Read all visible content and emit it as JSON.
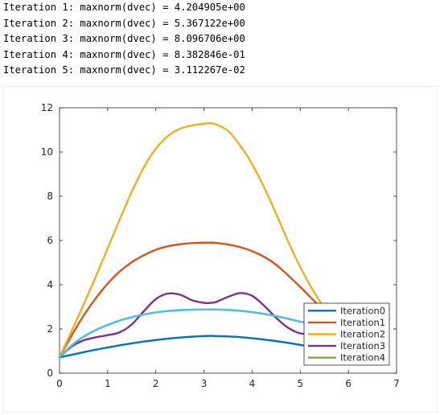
{
  "console": {
    "lines": [
      "Iteration 1: maxnorm(dvec) = 4.204905e+00",
      "Iteration 2: maxnorm(dvec) = 5.367122e+00",
      "Iteration 3: maxnorm(dvec) = 8.096706e+00",
      "Iteration 4: maxnorm(dvec) = 8.382846e-01",
      "Iteration 5: maxnorm(dvec) = 3.112267e-02"
    ]
  },
  "chart_data": {
    "type": "line",
    "xlim": [
      0,
      7
    ],
    "ylim": [
      0,
      12
    ],
    "xticks": [
      0,
      1,
      2,
      3,
      4,
      5,
      6,
      7
    ],
    "yticks": [
      0,
      2,
      4,
      6,
      8,
      10,
      12
    ],
    "grid": false,
    "legend_position": "bottom-right",
    "x": [
      0,
      0.25,
      0.5,
      0.75,
      1.0,
      1.25,
      1.5,
      1.75,
      2.0,
      2.25,
      2.5,
      2.75,
      3.0,
      3.14,
      3.25,
      3.5,
      3.75,
      4.0,
      4.25,
      4.5,
      4.75,
      5.0,
      5.25,
      5.5,
      5.75
    ],
    "series": [
      {
        "name": "Iteration0",
        "color": "#0072BD",
        "values": [
          0.72,
          0.83,
          0.95,
          1.06,
          1.16,
          1.26,
          1.35,
          1.43,
          1.5,
          1.56,
          1.61,
          1.65,
          1.68,
          1.69,
          1.68,
          1.66,
          1.63,
          1.58,
          1.52,
          1.45,
          1.37,
          1.28,
          1.18,
          1.07,
          0.95
        ]
      },
      {
        "name": "Iteration1",
        "color": "#D95319",
        "values": [
          0.72,
          1.7,
          2.6,
          3.38,
          4.05,
          4.6,
          5.02,
          5.33,
          5.58,
          5.74,
          5.83,
          5.88,
          5.9,
          5.9,
          5.89,
          5.82,
          5.7,
          5.52,
          5.26,
          4.9,
          4.42,
          3.9,
          3.35,
          2.8,
          2.25
        ]
      },
      {
        "name": "Iteration2",
        "color": "#EDB120",
        "values": [
          0.72,
          1.9,
          3.1,
          4.35,
          5.65,
          6.95,
          8.2,
          9.3,
          10.15,
          10.72,
          11.05,
          11.2,
          11.28,
          11.3,
          11.25,
          10.95,
          10.3,
          9.45,
          8.4,
          7.2,
          5.95,
          4.8,
          3.8,
          2.95,
          2.25
        ]
      },
      {
        "name": "Iteration3",
        "color": "#7E2F8E",
        "values": [
          0.72,
          1.2,
          1.48,
          1.62,
          1.72,
          1.85,
          2.2,
          2.8,
          3.35,
          3.6,
          3.55,
          3.3,
          3.18,
          3.18,
          3.22,
          3.45,
          3.62,
          3.5,
          3.05,
          2.5,
          2.05,
          1.8,
          1.8,
          2.0,
          2.25
        ]
      },
      {
        "name": "Iteration4",
        "color": "#77AC30",
        "values": [
          0.72,
          1.25,
          1.65,
          1.95,
          2.18,
          2.38,
          2.53,
          2.65,
          2.75,
          2.81,
          2.85,
          2.87,
          2.88,
          2.88,
          2.88,
          2.86,
          2.82,
          2.76,
          2.68,
          2.58,
          2.46,
          2.33,
          2.24,
          2.21,
          2.25
        ]
      },
      {
        "name": "",
        "color": "#4DBEEE",
        "values": [
          0.72,
          1.25,
          1.65,
          1.95,
          2.18,
          2.38,
          2.53,
          2.65,
          2.75,
          2.81,
          2.85,
          2.87,
          2.88,
          2.88,
          2.88,
          2.86,
          2.82,
          2.76,
          2.68,
          2.58,
          2.46,
          2.33,
          2.24,
          2.21,
          2.25
        ]
      }
    ]
  }
}
